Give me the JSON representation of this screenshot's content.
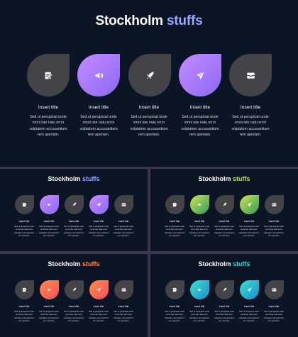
{
  "deck": {
    "title_main": "Stockholm",
    "title_accent": "stuffs",
    "item_title": "Insert title",
    "item_body": [
      "Sed ut perspiciat unde",
      "omni iste natu error",
      "volptatem accusantium",
      "rem aperiam."
    ]
  },
  "icons": [
    "note-icon",
    "volume-icon",
    "rocket-icon",
    "paper-plane-icon",
    "inbox-icon"
  ],
  "themes": [
    {
      "name": "purple",
      "accent": "#9aa8ff",
      "gradient": [
        "#c58cff",
        "#8b67f4"
      ]
    },
    {
      "name": "purple",
      "accent": "#9aa8ff",
      "gradient": [
        "#c58cff",
        "#8b67f4"
      ]
    },
    {
      "name": "green",
      "accent": "#b9e25e",
      "gradient": [
        "#cfe655",
        "#2e9a57"
      ]
    },
    {
      "name": "orange",
      "accent": "#ff8a3e",
      "gradient": [
        "#ff8a45",
        "#ff4f5f"
      ]
    },
    {
      "name": "teal",
      "accent": "#2fd3d8",
      "gradient": [
        "#3de0c9",
        "#168fd6"
      ]
    }
  ]
}
